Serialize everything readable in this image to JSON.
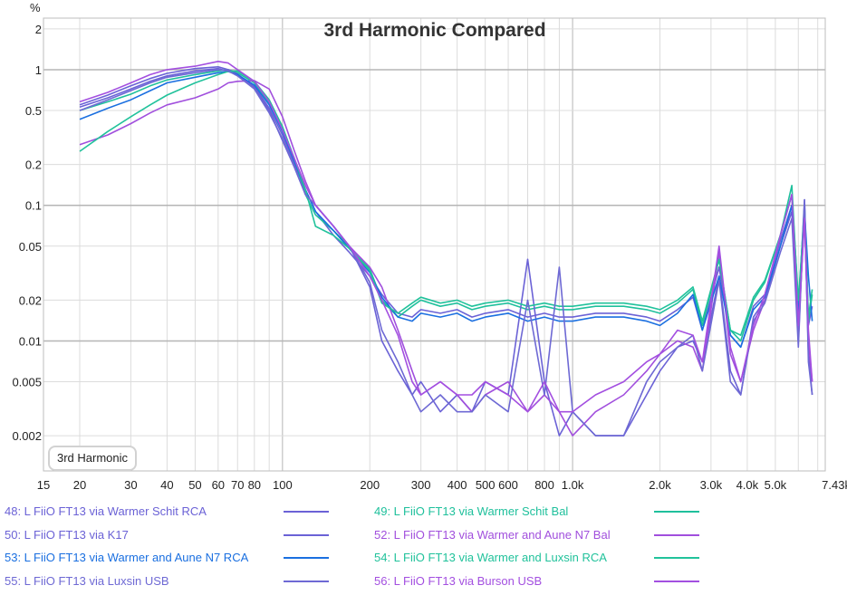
{
  "chart_data": {
    "type": "line",
    "title": "3rd Harmonic Compared",
    "ylabel": "%",
    "x_unit_label": "kHz",
    "x_scale": "log",
    "y_scale": "log",
    "xlim": [
      15,
      7430
    ],
    "ylim": [
      0.0011,
      2.4
    ],
    "grid": true,
    "legend_position": "bottom",
    "annotation": "3rd Harmonic",
    "y_ticks": [
      {
        "v": 2,
        "label": "2"
      },
      {
        "v": 1,
        "label": "1"
      },
      {
        "v": 0.5,
        "label": "0.5"
      },
      {
        "v": 0.2,
        "label": "0.2"
      },
      {
        "v": 0.1,
        "label": "0.1"
      },
      {
        "v": 0.05,
        "label": "0.05"
      },
      {
        "v": 0.02,
        "label": "0.02"
      },
      {
        "v": 0.01,
        "label": "0.01"
      },
      {
        "v": 0.005,
        "label": "0.005"
      },
      {
        "v": 0.002,
        "label": "0.002"
      }
    ],
    "x_ticks": [
      {
        "v": 15,
        "label": "15"
      },
      {
        "v": 20,
        "label": "20"
      },
      {
        "v": 30,
        "label": "30"
      },
      {
        "v": 40,
        "label": "40"
      },
      {
        "v": 50,
        "label": "50"
      },
      {
        "v": 60,
        "label": "60"
      },
      {
        "v": 70,
        "label": "70"
      },
      {
        "v": 80,
        "label": "80"
      },
      {
        "v": 100,
        "label": "100"
      },
      {
        "v": 200,
        "label": "200"
      },
      {
        "v": 300,
        "label": "300"
      },
      {
        "v": 400,
        "label": "400"
      },
      {
        "v": 500,
        "label": "500"
      },
      {
        "v": 600,
        "label": "600"
      },
      {
        "v": 800,
        "label": "800"
      },
      {
        "v": 1000,
        "label": "1.0k"
      },
      {
        "v": 2000,
        "label": "2.0k"
      },
      {
        "v": 3000,
        "label": "3.0k"
      },
      {
        "v": 4000,
        "label": "4.0k"
      },
      {
        "v": 5000,
        "label": "5.0k"
      },
      {
        "v": 7430,
        "label": "7.43kHz"
      }
    ],
    "x": [
      20,
      25,
      30,
      35,
      40,
      50,
      60,
      65,
      70,
      80,
      90,
      100,
      110,
      120,
      130,
      150,
      170,
      200,
      220,
      250,
      280,
      300,
      350,
      400,
      450,
      500,
      600,
      700,
      800,
      900,
      1000,
      1200,
      1500,
      1800,
      2000,
      2300,
      2600,
      2800,
      3200,
      3500,
      3800,
      4200,
      4600,
      5200,
      5700,
      6000,
      6300,
      6500,
      6700
    ],
    "series": [
      {
        "name": "48: L FiiO FT13 via Warmer Schit RCA",
        "color": "#6b62d6",
        "values": [
          0.53,
          0.62,
          0.72,
          0.82,
          0.9,
          0.98,
          1.02,
          0.97,
          0.92,
          0.75,
          0.52,
          0.33,
          0.2,
          0.13,
          0.09,
          0.06,
          0.045,
          0.03,
          0.022,
          0.016,
          0.015,
          0.017,
          0.016,
          0.017,
          0.015,
          0.016,
          0.017,
          0.015,
          0.016,
          0.015,
          0.015,
          0.016,
          0.016,
          0.015,
          0.014,
          0.017,
          0.021,
          0.012,
          0.035,
          0.011,
          0.009,
          0.018,
          0.022,
          0.055,
          0.1,
          0.016,
          0.11,
          0.013,
          0.018
        ]
      },
      {
        "name": "49: L FiiO FT13 via Warmer Schit Bal",
        "color": "#1fc09c",
        "values": [
          0.5,
          0.58,
          0.66,
          0.76,
          0.84,
          0.92,
          0.98,
          1.0,
          0.95,
          0.8,
          0.57,
          0.36,
          0.22,
          0.12,
          0.085,
          0.065,
          0.05,
          0.034,
          0.02,
          0.015,
          0.018,
          0.02,
          0.018,
          0.019,
          0.017,
          0.018,
          0.019,
          0.017,
          0.018,
          0.017,
          0.017,
          0.018,
          0.018,
          0.017,
          0.016,
          0.019,
          0.024,
          0.013,
          0.04,
          0.012,
          0.01,
          0.02,
          0.027,
          0.06,
          0.14,
          0.018,
          0.1,
          0.014,
          0.022
        ]
      },
      {
        "name": "50: L FiiO FT13 via K17",
        "color": "#6b62d6",
        "values": [
          0.55,
          0.65,
          0.76,
          0.86,
          0.94,
          1.02,
          1.05,
          1.0,
          0.93,
          0.74,
          0.5,
          0.3,
          0.19,
          0.12,
          0.1,
          0.07,
          0.05,
          0.025,
          0.01,
          0.006,
          0.004,
          0.005,
          0.003,
          0.004,
          0.003,
          0.005,
          0.004,
          0.04,
          0.005,
          0.002,
          0.003,
          0.002,
          0.002,
          0.004,
          0.006,
          0.009,
          0.01,
          0.007,
          0.03,
          0.006,
          0.004,
          0.015,
          0.02,
          0.05,
          0.09,
          0.01,
          0.1,
          0.008,
          0.004
        ]
      },
      {
        "name": "52: L FiiO FT13 via Warmer and Aune N7 Bal",
        "color": "#a14fdd",
        "values": [
          0.28,
          0.33,
          0.4,
          0.48,
          0.55,
          0.62,
          0.72,
          0.8,
          0.82,
          0.83,
          0.72,
          0.45,
          0.25,
          0.15,
          0.1,
          0.07,
          0.05,
          0.035,
          0.025,
          0.012,
          0.006,
          0.004,
          0.005,
          0.004,
          0.003,
          0.004,
          0.005,
          0.003,
          0.004,
          0.003,
          0.002,
          0.003,
          0.004,
          0.006,
          0.008,
          0.01,
          0.009,
          0.006,
          0.045,
          0.008,
          0.005,
          0.012,
          0.02,
          0.06,
          0.12,
          0.012,
          0.08,
          0.01,
          0.005
        ]
      },
      {
        "name": "53: L FiiO FT13 via Warmer and Aune N7 RCA",
        "color": "#1a6fe0",
        "values": [
          0.43,
          0.52,
          0.6,
          0.7,
          0.8,
          0.88,
          0.95,
          0.97,
          0.92,
          0.77,
          0.55,
          0.35,
          0.21,
          0.13,
          0.09,
          0.065,
          0.048,
          0.032,
          0.021,
          0.015,
          0.014,
          0.016,
          0.015,
          0.016,
          0.014,
          0.015,
          0.016,
          0.014,
          0.015,
          0.014,
          0.014,
          0.015,
          0.015,
          0.014,
          0.013,
          0.016,
          0.022,
          0.012,
          0.03,
          0.011,
          0.009,
          0.017,
          0.021,
          0.05,
          0.1,
          0.015,
          0.09,
          0.03,
          0.014
        ]
      },
      {
        "name": "54: L FiiO FT13 via Warmer and Luxsin RCA",
        "color": "#21c29b",
        "values": [
          0.25,
          0.35,
          0.45,
          0.55,
          0.65,
          0.8,
          0.92,
          0.97,
          0.98,
          0.82,
          0.6,
          0.38,
          0.22,
          0.13,
          0.07,
          0.06,
          0.048,
          0.033,
          0.019,
          0.016,
          0.019,
          0.021,
          0.019,
          0.02,
          0.018,
          0.019,
          0.02,
          0.018,
          0.019,
          0.018,
          0.018,
          0.019,
          0.019,
          0.018,
          0.017,
          0.02,
          0.025,
          0.014,
          0.04,
          0.012,
          0.011,
          0.021,
          0.028,
          0.06,
          0.12,
          0.02,
          0.09,
          0.015,
          0.024
        ]
      },
      {
        "name": "55: L FiiO FT13 via Luxsin USB",
        "color": "#6e69d4",
        "values": [
          0.5,
          0.6,
          0.7,
          0.8,
          0.88,
          0.95,
          1.0,
          0.98,
          0.9,
          0.72,
          0.48,
          0.31,
          0.19,
          0.12,
          0.1,
          0.07,
          0.05,
          0.027,
          0.012,
          0.007,
          0.004,
          0.003,
          0.004,
          0.003,
          0.003,
          0.004,
          0.003,
          0.02,
          0.004,
          0.035,
          0.003,
          0.002,
          0.002,
          0.005,
          0.007,
          0.009,
          0.011,
          0.006,
          0.028,
          0.005,
          0.004,
          0.014,
          0.019,
          0.045,
          0.08,
          0.009,
          0.11,
          0.007,
          0.004
        ]
      },
      {
        "name": "56: L FiiO FT13 via Burson USB",
        "color": "#a34fe0",
        "values": [
          0.58,
          0.68,
          0.8,
          0.92,
          1.0,
          1.06,
          1.15,
          1.12,
          1.0,
          0.82,
          0.58,
          0.36,
          0.22,
          0.14,
          0.1,
          0.07,
          0.05,
          0.03,
          0.02,
          0.011,
          0.005,
          0.004,
          0.005,
          0.004,
          0.004,
          0.005,
          0.004,
          0.003,
          0.005,
          0.003,
          0.003,
          0.004,
          0.005,
          0.007,
          0.008,
          0.012,
          0.011,
          0.007,
          0.05,
          0.009,
          0.005,
          0.013,
          0.022,
          0.06,
          0.12,
          0.013,
          0.08,
          0.012,
          0.005
        ]
      }
    ]
  }
}
